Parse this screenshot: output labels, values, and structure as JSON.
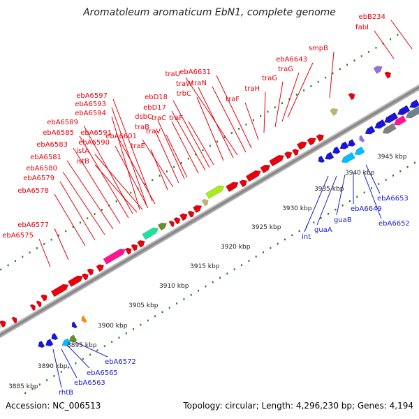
{
  "title": "Aromatoleum aromaticum EbN1, complete genome",
  "footer": {
    "accession": "Accession: NC_006513",
    "summary": "Topology: circular; Length: 4,296,230 bp; Genes: 4,194"
  },
  "colors": {
    "forward_label": "#e8000b",
    "reverse_label": "#1c1ccc",
    "forward_gene": "#e8000b",
    "reverse_gene": "#1a14d8",
    "backbone": "#8a8a8a",
    "dots": "#1e7a1e"
  },
  "ruler": [
    "3885 kbp",
    "3890 kbp",
    "3895 kbp",
    "3900 kbp",
    "3905 kbp",
    "3910 kbp",
    "3915 kbp",
    "3920 kbp",
    "3925 kbp",
    "3930 kbp",
    "3935 kbp",
    "3940 kbp",
    "3945 kbp"
  ],
  "genes_forward": [
    "ebA6575",
    "ebA6577",
    "ebA6578",
    "ebA6579",
    "ebA6580",
    "ebA6581",
    "ebA6583",
    "ebA6585",
    "ebA6589",
    "ebA6594",
    "ebA6593",
    "ebA6597",
    "istB",
    "istA",
    "ebA6590",
    "ebA6591",
    "traE",
    "ebA6601",
    "traB",
    "dsbC",
    "traV",
    "traC",
    "ebD17",
    "ebD18",
    "traF",
    "trbC",
    "traW",
    "traU",
    "traN",
    "ebA6631",
    "traF",
    "traH",
    "traG",
    "traG",
    "ebA6643",
    "smpB",
    "fabI",
    "ebB234"
  ],
  "genes_reverse": [
    "rhtB",
    "ebA6563",
    "ebA6565",
    "ebA6572",
    "int",
    "guaA",
    "guaB",
    "ebA6649",
    "ebA6652",
    "ebA6653"
  ]
}
